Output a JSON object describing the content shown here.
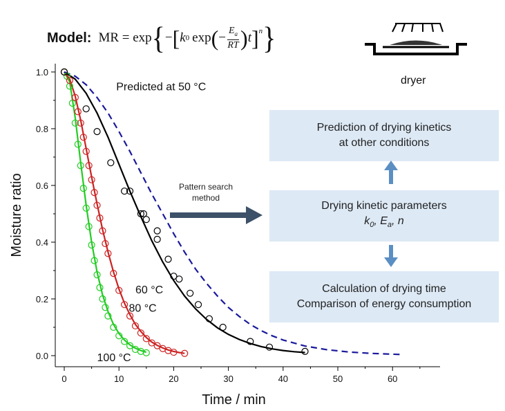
{
  "model": {
    "label": "Model:",
    "lhs": "MR = exp",
    "k": "k",
    "k_sub": "0",
    "exp2": "exp",
    "frac_num": "E",
    "frac_num_sub": "a",
    "frac_den": "RT",
    "t": "t",
    "power": "n"
  },
  "dryer": {
    "label": "dryer"
  },
  "flow": {
    "arrow_label": [
      "Pattern search",
      "method"
    ],
    "prediction_box": [
      "Prediction of drying kinetics",
      "at other conditions"
    ],
    "parameters_box": {
      "line1": "Drying kinetic parameters",
      "k": "k",
      "k_sub": "0",
      "e": "E",
      "e_sub": "a",
      "n": "n"
    },
    "calculation_box": [
      "Calculation of drying time",
      "Comparison of energy consumption"
    ],
    "box_color": "#dde9f5",
    "arrow_color": "#5b8fc4",
    "big_arrow_color": "#3d5168"
  },
  "chart_data": {
    "type": "line",
    "xlabel": "Time / min",
    "ylabel": "Moisture ratio",
    "xlim": [
      -2,
      68
    ],
    "ylim": [
      -0.03,
      1.02
    ],
    "xticks": [
      0,
      10,
      20,
      30,
      40,
      50,
      60
    ],
    "yticks": [
      "0.0",
      "0.2",
      "0.4",
      "0.6",
      "0.8",
      "1.0"
    ],
    "ytick_values": [
      0,
      0.2,
      0.4,
      0.6,
      0.8,
      1.0
    ],
    "series": [
      {
        "name": "100 °C",
        "color": "#22cc22",
        "points": [
          [
            0,
            1.0
          ],
          [
            0.5,
            0.985
          ],
          [
            1.0,
            0.95
          ],
          [
            1.5,
            0.89
          ],
          [
            2,
            0.82
          ],
          [
            2.5,
            0.745
          ],
          [
            3,
            0.67
          ],
          [
            3.5,
            0.59
          ],
          [
            4,
            0.52
          ],
          [
            4.5,
            0.455
          ],
          [
            5,
            0.39
          ],
          [
            5.5,
            0.335
          ],
          [
            6,
            0.285
          ],
          [
            6.5,
            0.24
          ],
          [
            7,
            0.2
          ],
          [
            7.5,
            0.17
          ],
          [
            8,
            0.14
          ],
          [
            9,
            0.1
          ],
          [
            10,
            0.07
          ],
          [
            11,
            0.05
          ],
          [
            12,
            0.035
          ],
          [
            13,
            0.022
          ],
          [
            14,
            0.015
          ],
          [
            15,
            0.01
          ]
        ],
        "curve": [
          [
            0,
            1.0
          ],
          [
            1,
            0.965
          ],
          [
            2,
            0.84
          ],
          [
            3,
            0.68
          ],
          [
            4,
            0.53
          ],
          [
            5,
            0.4
          ],
          [
            6,
            0.295
          ],
          [
            7,
            0.215
          ],
          [
            8,
            0.155
          ],
          [
            9,
            0.11
          ],
          [
            10,
            0.078
          ],
          [
            11,
            0.055
          ],
          [
            12,
            0.038
          ],
          [
            13,
            0.026
          ],
          [
            14,
            0.018
          ],
          [
            15,
            0.012
          ]
        ]
      },
      {
        "name": "80 °C",
        "color": "#cc2222",
        "points": [
          [
            0,
            1.0
          ],
          [
            1,
            0.97
          ],
          [
            2,
            0.91
          ],
          [
            2.5,
            0.86
          ],
          [
            3,
            0.82
          ],
          [
            3.5,
            0.77
          ],
          [
            4,
            0.72
          ],
          [
            4.5,
            0.67
          ],
          [
            5,
            0.62
          ],
          [
            5.5,
            0.575
          ],
          [
            6,
            0.53
          ],
          [
            6.5,
            0.485
          ],
          [
            7,
            0.44
          ],
          [
            7.5,
            0.395
          ],
          [
            8,
            0.36
          ],
          [
            9,
            0.29
          ],
          [
            10,
            0.23
          ],
          [
            11,
            0.18
          ],
          [
            12,
            0.14
          ],
          [
            13,
            0.105
          ],
          [
            14,
            0.08
          ],
          [
            15,
            0.06
          ],
          [
            16,
            0.045
          ],
          [
            17,
            0.035
          ],
          [
            18,
            0.025
          ],
          [
            19,
            0.018
          ],
          [
            20,
            0.012
          ],
          [
            22,
            0.008
          ]
        ],
        "curve": [
          [
            0,
            1.0
          ],
          [
            1,
            0.975
          ],
          [
            2,
            0.915
          ],
          [
            3,
            0.83
          ],
          [
            4,
            0.73
          ],
          [
            5,
            0.63
          ],
          [
            6,
            0.535
          ],
          [
            7,
            0.445
          ],
          [
            8,
            0.365
          ],
          [
            9,
            0.295
          ],
          [
            10,
            0.235
          ],
          [
            11,
            0.185
          ],
          [
            12,
            0.145
          ],
          [
            13,
            0.11
          ],
          [
            14,
            0.085
          ],
          [
            15,
            0.064
          ],
          [
            16,
            0.048
          ],
          [
            17,
            0.036
          ],
          [
            18,
            0.027
          ],
          [
            19,
            0.02
          ],
          [
            20,
            0.015
          ],
          [
            21,
            0.011
          ],
          [
            22,
            0.008
          ]
        ]
      },
      {
        "name": "60 °C",
        "color": "#000000",
        "points": [
          [
            0,
            1.0
          ],
          [
            4,
            0.87
          ],
          [
            6,
            0.79
          ],
          [
            8.5,
            0.68
          ],
          [
            11,
            0.58
          ],
          [
            12,
            0.58
          ],
          [
            14,
            0.5
          ],
          [
            15,
            0.48
          ],
          [
            17,
            0.44
          ],
          [
            14.5,
            0.5
          ],
          [
            17,
            0.41
          ],
          [
            19,
            0.34
          ],
          [
            20,
            0.28
          ],
          [
            21,
            0.27
          ],
          [
            23,
            0.22
          ],
          [
            24.5,
            0.18
          ],
          [
            26.5,
            0.13
          ],
          [
            29,
            0.1
          ],
          [
            34,
            0.05
          ],
          [
            37.5,
            0.03
          ],
          [
            44,
            0.015
          ]
        ],
        "curve": [
          [
            0,
            1.0
          ],
          [
            2,
            0.975
          ],
          [
            4,
            0.925
          ],
          [
            6,
            0.855
          ],
          [
            8,
            0.77
          ],
          [
            10,
            0.675
          ],
          [
            12,
            0.58
          ],
          [
            14,
            0.49
          ],
          [
            16,
            0.405
          ],
          [
            18,
            0.33
          ],
          [
            20,
            0.265
          ],
          [
            22,
            0.21
          ],
          [
            24,
            0.165
          ],
          [
            26,
            0.128
          ],
          [
            28,
            0.098
          ],
          [
            30,
            0.075
          ],
          [
            32,
            0.057
          ],
          [
            34,
            0.043
          ],
          [
            36,
            0.032
          ],
          [
            38,
            0.024
          ],
          [
            40,
            0.018
          ],
          [
            42,
            0.014
          ],
          [
            44,
            0.011
          ]
        ]
      },
      {
        "name": "Predicted at 50 °C",
        "color": "#1a1a9c",
        "dashed": true,
        "curve": [
          [
            0,
            1.0
          ],
          [
            2,
            0.985
          ],
          [
            4,
            0.955
          ],
          [
            6,
            0.91
          ],
          [
            8,
            0.855
          ],
          [
            10,
            0.79
          ],
          [
            12,
            0.72
          ],
          [
            14,
            0.645
          ],
          [
            16,
            0.57
          ],
          [
            18,
            0.5
          ],
          [
            20,
            0.43
          ],
          [
            22,
            0.365
          ],
          [
            24,
            0.305
          ],
          [
            26,
            0.255
          ],
          [
            28,
            0.21
          ],
          [
            30,
            0.17
          ],
          [
            32,
            0.138
          ],
          [
            34,
            0.11
          ],
          [
            36,
            0.088
          ],
          [
            38,
            0.07
          ],
          [
            40,
            0.055
          ],
          [
            44,
            0.034
          ],
          [
            48,
            0.021
          ],
          [
            52,
            0.013
          ],
          [
            56,
            0.008
          ],
          [
            60,
            0.005
          ],
          [
            62,
            0.004
          ]
        ]
      }
    ],
    "annotations": [
      {
        "text": "Predicted at 50 °C",
        "x": 9.5,
        "y": 0.935
      },
      {
        "text": "60 °C",
        "x": 13.0,
        "y": 0.22
      },
      {
        "text": "80 °C",
        "x": 11.8,
        "y": 0.155
      },
      {
        "text": "100 °C",
        "x": 6.0,
        "y": -0.02
      }
    ]
  }
}
